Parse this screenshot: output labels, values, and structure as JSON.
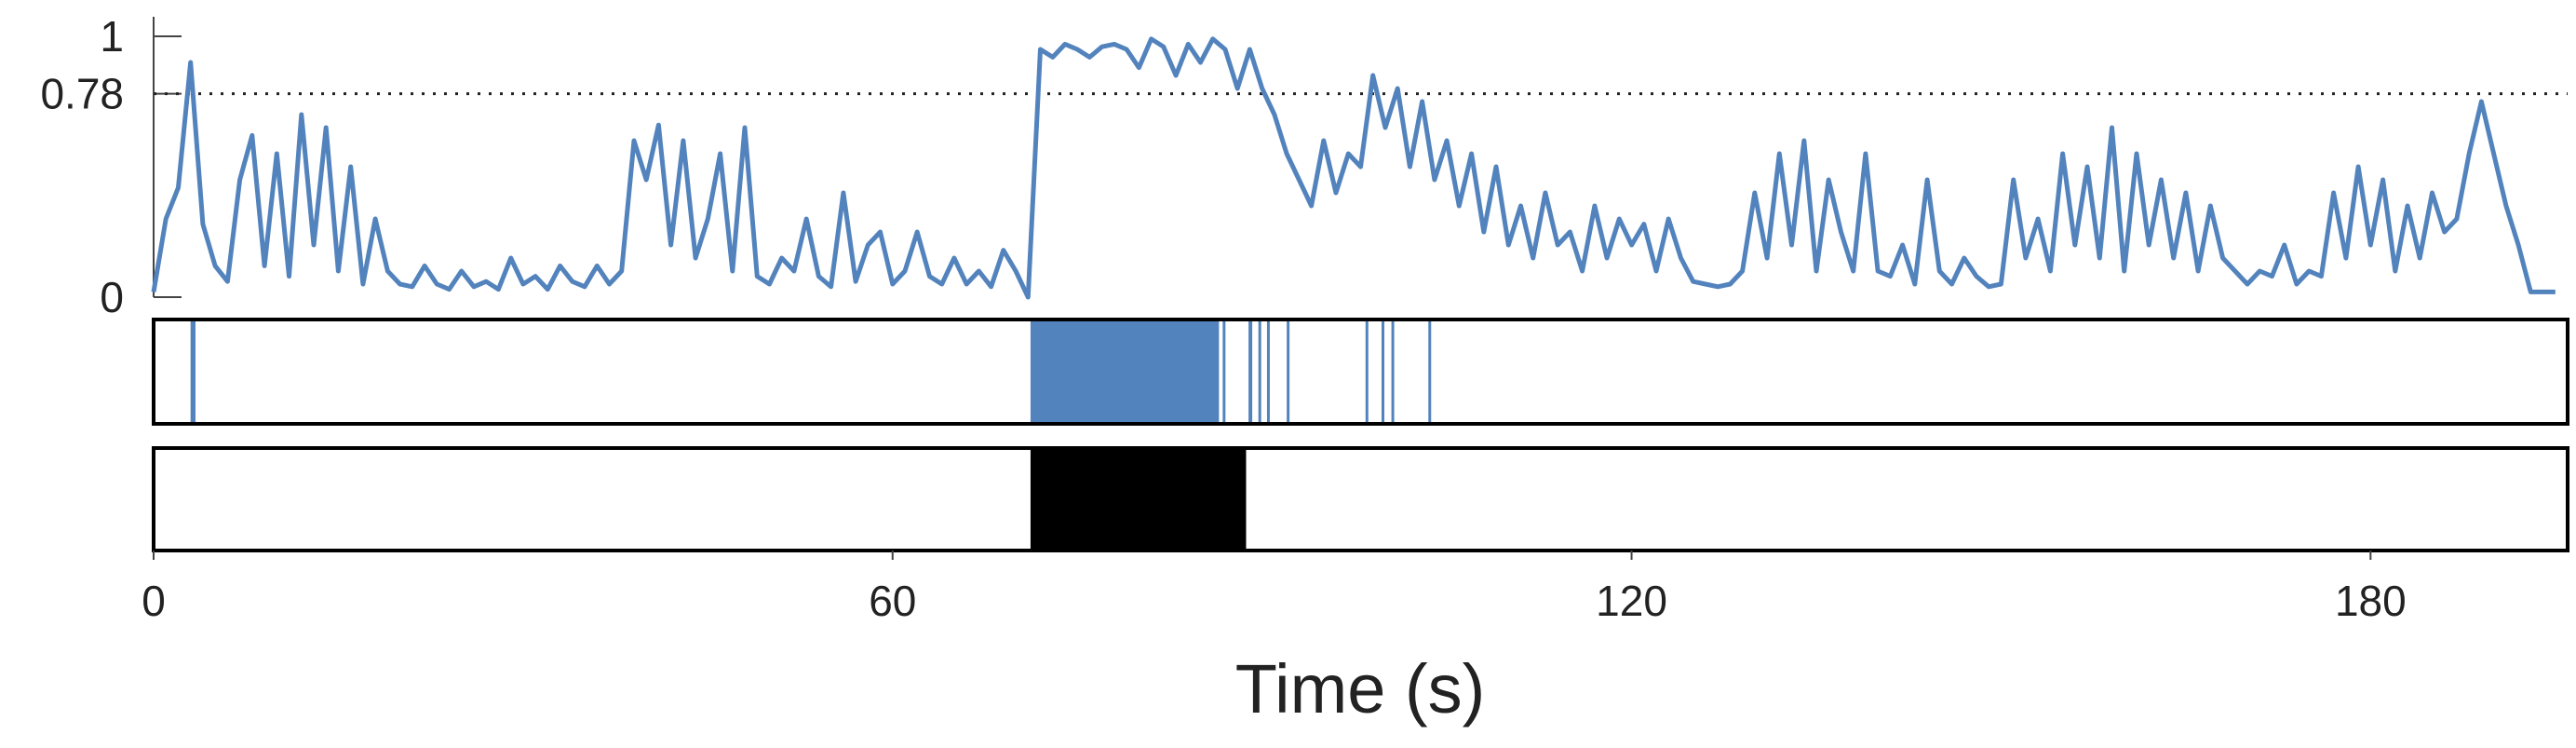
{
  "chart_data": {
    "type": "line",
    "xlabel": "Time (s)",
    "x": [
      0,
      1,
      2,
      3,
      4,
      5,
      6,
      7,
      8,
      9,
      10,
      11,
      12,
      13,
      14,
      15,
      16,
      17,
      18,
      19,
      20,
      21,
      22,
      23,
      24,
      25,
      26,
      27,
      28,
      29,
      30,
      31,
      32,
      33,
      34,
      35,
      36,
      37,
      38,
      39,
      40,
      41,
      42,
      43,
      44,
      45,
      46,
      47,
      48,
      49,
      50,
      51,
      52,
      53,
      54,
      55,
      56,
      57,
      58,
      59,
      60,
      61,
      62,
      63,
      64,
      65,
      66,
      67,
      68,
      69,
      70,
      71,
      72,
      73,
      74,
      75,
      76,
      77,
      78,
      79,
      80,
      81,
      82,
      83,
      84,
      85,
      86,
      87,
      88,
      89,
      90,
      91,
      92,
      93,
      94,
      95,
      96,
      97,
      98,
      99,
      100,
      101,
      102,
      103,
      104,
      105,
      106,
      107,
      108,
      109,
      110,
      111,
      112,
      113,
      114,
      115,
      116,
      117,
      118,
      119,
      120,
      121,
      122,
      123,
      124,
      125,
      126,
      127,
      128,
      129,
      130,
      131,
      132,
      133,
      134,
      135,
      136,
      137,
      138,
      139,
      140,
      141,
      142,
      143,
      144,
      145,
      146,
      147,
      148,
      149,
      150,
      151,
      152,
      153,
      154,
      155,
      156,
      157,
      158,
      159,
      160,
      161,
      162,
      163,
      164,
      165,
      166,
      167,
      168,
      169,
      170,
      171,
      172,
      173,
      174,
      175,
      176,
      177,
      178,
      179,
      180,
      181,
      182,
      183,
      184,
      185,
      186,
      187,
      188,
      189,
      190,
      191,
      192,
      193,
      194,
      195
    ],
    "values": [
      0.02,
      0.3,
      0.42,
      0.9,
      0.28,
      0.12,
      0.06,
      0.45,
      0.62,
      0.12,
      0.55,
      0.08,
      0.7,
      0.2,
      0.65,
      0.1,
      0.5,
      0.05,
      0.3,
      0.1,
      0.05,
      0.04,
      0.12,
      0.05,
      0.03,
      0.1,
      0.04,
      0.06,
      0.03,
      0.15,
      0.05,
      0.08,
      0.03,
      0.12,
      0.06,
      0.04,
      0.12,
      0.05,
      0.1,
      0.6,
      0.45,
      0.66,
      0.2,
      0.6,
      0.15,
      0.3,
      0.55,
      0.1,
      0.65,
      0.08,
      0.05,
      0.15,
      0.1,
      0.3,
      0.08,
      0.04,
      0.4,
      0.06,
      0.2,
      0.25,
      0.05,
      0.1,
      0.25,
      0.08,
      0.05,
      0.15,
      0.05,
      0.1,
      0.04,
      0.18,
      0.1,
      0.0,
      0.95,
      0.92,
      0.97,
      0.95,
      0.92,
      0.96,
      0.97,
      0.95,
      0.88,
      0.99,
      0.96,
      0.85,
      0.97,
      0.9,
      0.99,
      0.95,
      0.8,
      0.95,
      0.8,
      0.7,
      0.55,
      0.45,
      0.35,
      0.6,
      0.4,
      0.55,
      0.5,
      0.85,
      0.65,
      0.8,
      0.5,
      0.75,
      0.45,
      0.6,
      0.35,
      0.55,
      0.25,
      0.5,
      0.2,
      0.35,
      0.15,
      0.4,
      0.2,
      0.25,
      0.1,
      0.35,
      0.15,
      0.3,
      0.2,
      0.28,
      0.1,
      0.3,
      0.15,
      0.06,
      0.05,
      0.04,
      0.05,
      0.1,
      0.4,
      0.15,
      0.55,
      0.2,
      0.6,
      0.1,
      0.45,
      0.25,
      0.1,
      0.55,
      0.1,
      0.08,
      0.2,
      0.05,
      0.45,
      0.1,
      0.05,
      0.15,
      0.08,
      0.04,
      0.05,
      0.45,
      0.15,
      0.3,
      0.1,
      0.55,
      0.2,
      0.5,
      0.15,
      0.65,
      0.1,
      0.55,
      0.2,
      0.45,
      0.15,
      0.4,
      0.1,
      0.35,
      0.15,
      0.1,
      0.05,
      0.1,
      0.08,
      0.2,
      0.05,
      0.1,
      0.08,
      0.4,
      0.15,
      0.5,
      0.2,
      0.45,
      0.1,
      0.35,
      0.15,
      0.4,
      0.25,
      0.3,
      0.55,
      0.75,
      0.55,
      0.35,
      0.2,
      0.02,
      0.02,
      0.02
    ],
    "color": "#5383bd",
    "xlim": [
      0,
      196
    ],
    "xticks": [
      0,
      60,
      120,
      180
    ],
    "ylim": [
      0,
      1
    ],
    "yticks": [
      0,
      0.78,
      1
    ],
    "threshold": 0.78,
    "detections": {
      "color": "#5383bd",
      "intervals": [
        [
          3.0,
          3.4
        ],
        [
          71.2,
          86.5
        ],
        [
          86.8,
          87.0
        ],
        [
          88.9,
          89.2
        ],
        [
          89.7,
          89.9
        ],
        [
          90.4,
          90.6
        ],
        [
          92.0,
          92.2
        ],
        [
          98.4,
          98.6
        ],
        [
          99.7,
          99.9
        ],
        [
          100.5,
          100.7
        ],
        [
          103.5,
          103.7
        ]
      ]
    },
    "ground_truth": {
      "color": "#000000",
      "intervals": [
        [
          71.2,
          88.7
        ]
      ]
    }
  }
}
